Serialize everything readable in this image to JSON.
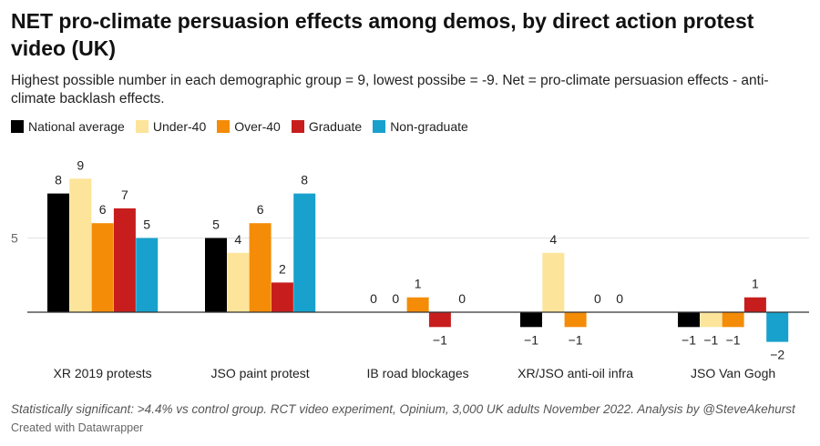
{
  "title": "NET pro-climate persuasion effects among demos, by direct action protest video (UK)",
  "subtitle": "Highest possible number in each demographic group = 9, lowest possibe = -9. Net = pro-climate persuasion effects - anti-climate backlash effects.",
  "footer": {
    "note": "Statistically significant: >4.4% vs control group. RCT video experiment, Opinium, 3,000 UK adults November 2022. Analysis by @SteveAkehurst",
    "credit": "Created with Datawrapper"
  },
  "chart_data": {
    "type": "bar",
    "title": "NET pro-climate persuasion effects among demos, by direct action protest video (UK)",
    "categories": [
      "XR 2019 protests",
      "JSO paint protest",
      "IB road blockages",
      "XR/JSO anti-oil infra",
      "JSO Van Gogh"
    ],
    "series": [
      {
        "name": "National average",
        "color": "#000000",
        "values": [
          8,
          5,
          0,
          -1,
          -1
        ]
      },
      {
        "name": "Under-40",
        "color": "#fce49a",
        "values": [
          9,
          4,
          0,
          4,
          -1
        ]
      },
      {
        "name": "Over-40",
        "color": "#f48c08",
        "values": [
          6,
          6,
          1,
          -1,
          -1
        ]
      },
      {
        "name": "Graduate",
        "color": "#c71e1d",
        "values": [
          7,
          2,
          -1,
          0,
          1
        ]
      },
      {
        "name": "Non-graduate",
        "color": "#18a1cd",
        "values": [
          5,
          8,
          0,
          0,
          -2
        ]
      }
    ],
    "yticks": [
      5
    ],
    "ylim": [
      -2.5,
      10
    ],
    "grid": true,
    "legend": "top-left",
    "value_labels": [
      [
        "8",
        "5",
        "0",
        "−1",
        "−1"
      ],
      [
        "9",
        "4",
        "0",
        "4",
        "−1"
      ],
      [
        "6",
        "6",
        "1",
        "−1",
        "−1"
      ],
      [
        "7",
        "2",
        "−1",
        "0",
        "1"
      ],
      [
        "5",
        "8",
        "0",
        "0",
        "−2"
      ]
    ]
  }
}
